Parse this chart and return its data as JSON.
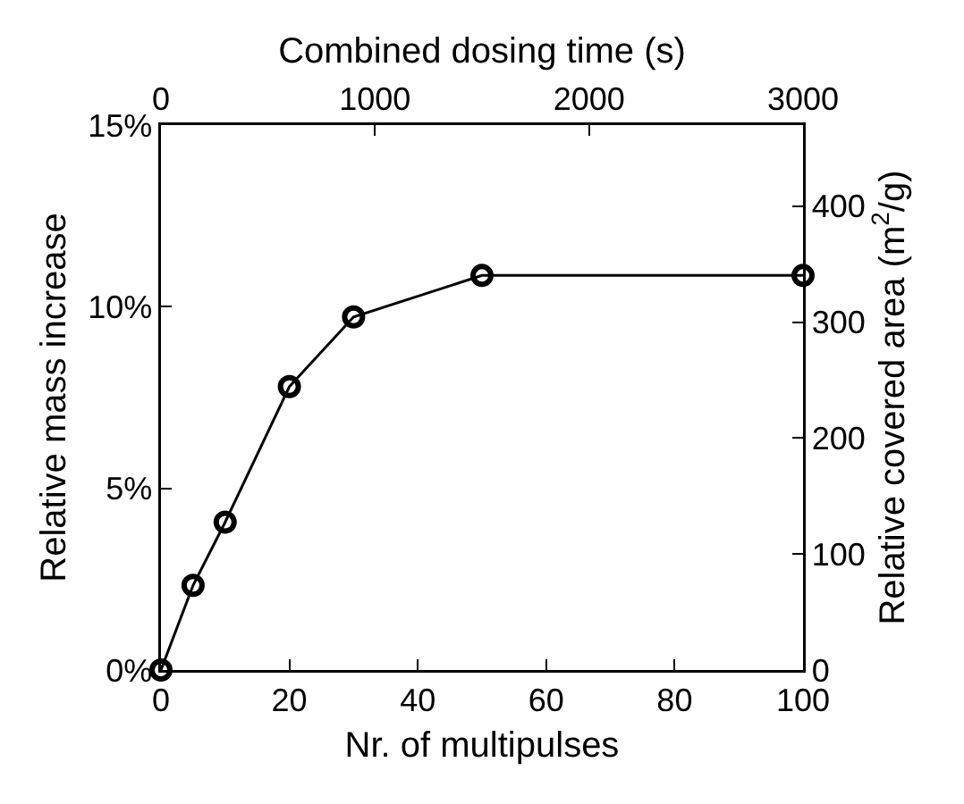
{
  "chart_data": {
    "type": "line",
    "xlabel": "Nr. of multipulses",
    "ylabel": "Relative mass increase",
    "y2label": "Relative covered area (m$^{2}$/g)",
    "x2label": "Combined dosing time (s)",
    "x": [
      0,
      5,
      10,
      20,
      30,
      50,
      100
    ],
    "series": [
      {
        "color": "#000000",
        "values": [
          0,
          2.33,
          4.07,
          7.8,
          9.72,
          10.86,
          10.86
        ]
      }
    ],
    "xlim": [
      0,
      100
    ],
    "xticks": [
      0,
      20,
      40,
      60,
      80,
      100
    ],
    "ylim": [
      0,
      15
    ],
    "yticks": [
      {
        "value": 0,
        "label": "0%"
      },
      {
        "value": 5,
        "label": "5%"
      },
      {
        "value": 10,
        "label": "10%"
      },
      {
        "value": 15,
        "label": "15%"
      }
    ],
    "y2lim": [
      0,
      470
    ],
    "y2ticks": [
      0,
      100,
      200,
      300,
      400
    ],
    "x2lim": [
      0,
      3000
    ],
    "x2ticks": [
      0,
      1000,
      2000,
      3000
    ],
    "marker": "circle",
    "line_style": "solid"
  }
}
